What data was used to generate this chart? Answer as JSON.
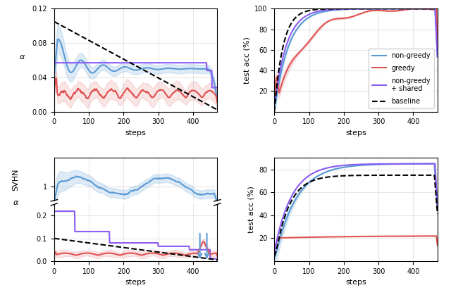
{
  "colors": {
    "non_greedy": "#5b9bd5",
    "greedy": "#e05252",
    "shared": "#8b5cf6",
    "baseline": "#000000"
  },
  "mnist_alpha_ylim": [
    0,
    0.12
  ],
  "mnist_alpha_yticks": [
    0.0,
    0.04,
    0.08,
    0.12
  ],
  "mnist_acc_ylim": [
    0,
    100
  ],
  "mnist_acc_yticks": [
    20,
    40,
    60,
    80,
    100
  ],
  "svhn_alpha_upper_ylim": [
    0.5,
    2.0
  ],
  "svhn_alpha_upper_yticks": [
    1.0
  ],
  "svhn_alpha_lower_ylim": [
    0.0,
    0.25
  ],
  "svhn_alpha_lower_yticks": [
    0.0,
    0.1,
    0.2
  ],
  "svhn_acc_ylim": [
    0,
    90
  ],
  "svhn_acc_yticks": [
    20,
    40,
    60,
    80
  ],
  "steps_max": 470,
  "xlabel": "steps"
}
